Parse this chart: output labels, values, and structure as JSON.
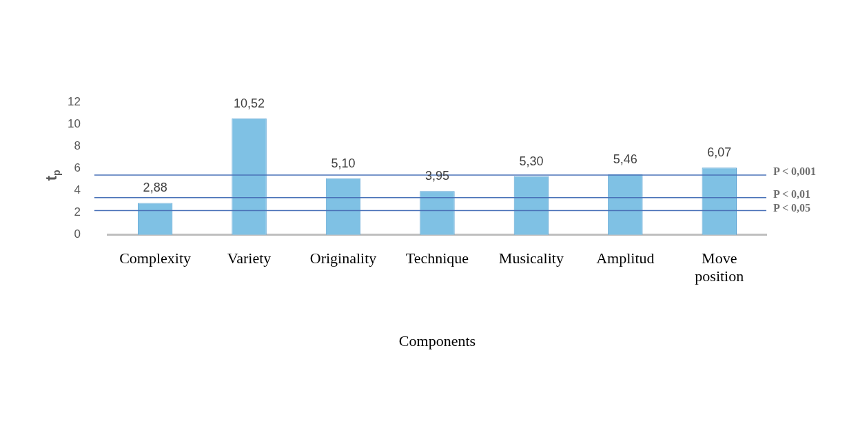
{
  "chart_data": {
    "type": "bar",
    "ylabel": "t$_{p}$",
    "xlabel": "Components",
    "categories": [
      "Complexity",
      "Variety",
      "Originality",
      "Technique",
      "Musicality",
      "Amplitud",
      "Move position"
    ],
    "values": [
      2.88,
      10.52,
      5.1,
      3.95,
      5.3,
      5.46,
      6.07
    ],
    "value_labels": [
      "2,88",
      "10,52",
      "5,10",
      "3,95",
      "5,30",
      "5,46",
      "6,07"
    ],
    "color": "#7fc1e4",
    "ylim": [
      0,
      12
    ],
    "yticks": [
      0,
      2,
      4,
      6,
      8,
      10,
      12
    ],
    "grid": false,
    "legend": false,
    "ref_lines": [
      {
        "axis": "y",
        "value": 5.41,
        "label": "P < 0,001",
        "color": "#4a72b8"
      },
      {
        "axis": "y",
        "value": 3.37,
        "label": "P < 0,01",
        "color": "#4a72b8"
      },
      {
        "axis": "y",
        "value": 2.19,
        "label": "P < 0,05",
        "color": "#4a72b8"
      }
    ]
  }
}
